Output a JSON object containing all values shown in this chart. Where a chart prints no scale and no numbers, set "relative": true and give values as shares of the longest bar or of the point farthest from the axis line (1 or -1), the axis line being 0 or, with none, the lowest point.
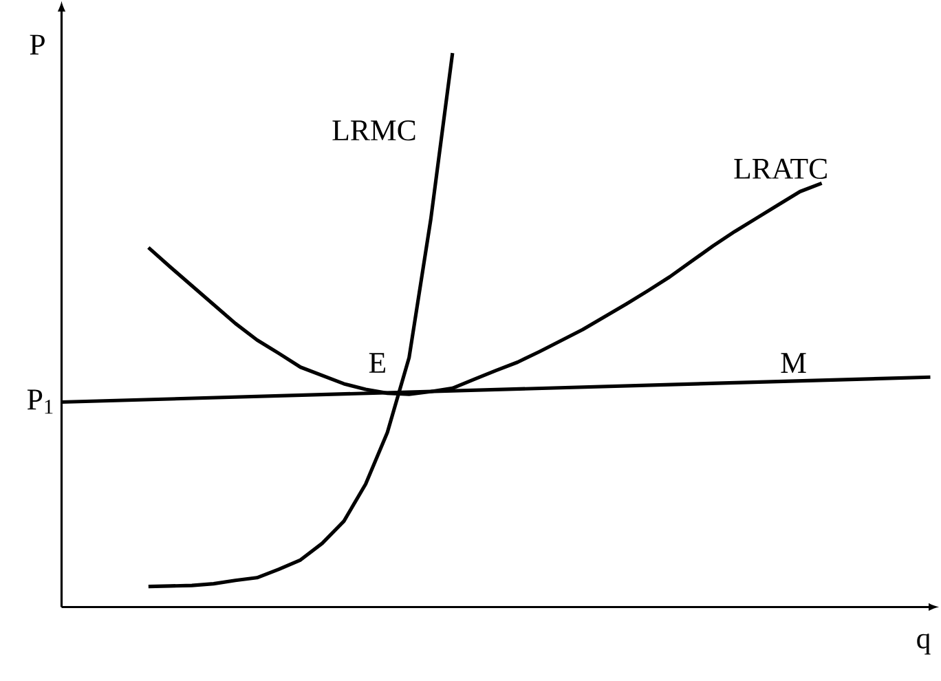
{
  "chart_data": {
    "type": "line",
    "relative": true,
    "xlabel": "q",
    "ylabel": "P",
    "line_style": "solid",
    "categories": [
      null,
      null,
      null,
      null,
      null,
      null,
      null,
      null,
      null,
      null,
      null,
      null,
      null,
      null,
      null,
      null,
      null,
      null,
      null,
      null,
      null,
      null,
      null,
      null,
      null,
      null,
      null,
      null,
      null,
      null,
      null,
      null,
      null,
      null,
      null,
      null,
      null,
      null,
      null,
      null,
      null
    ],
    "series": [
      {
        "name": "LRMC",
        "color": "#000000",
        "values": [
          null,
          null,
          null,
          null,
          0.037,
          0.038,
          0.039,
          0.042,
          0.048,
          0.053,
          0.068,
          0.085,
          0.115,
          0.155,
          0.222,
          0.315,
          0.45,
          0.7,
          1.0,
          null,
          null,
          null,
          null,
          null,
          null,
          null,
          null,
          null,
          null,
          null,
          null,
          null,
          null,
          null,
          null,
          null,
          null,
          null,
          null,
          null,
          null
        ]
      },
      {
        "name": "LRATC",
        "color": "#000000",
        "values": [
          null,
          null,
          null,
          null,
          0.649,
          0.614,
          0.58,
          0.546,
          0.512,
          0.482,
          0.458,
          0.433,
          0.418,
          0.403,
          0.393,
          0.386,
          0.384,
          0.389,
          0.395,
          0.411,
          0.427,
          0.442,
          0.461,
          0.481,
          0.501,
          0.524,
          0.547,
          0.571,
          0.596,
          0.624,
          0.652,
          0.678,
          0.702,
          0.726,
          0.75,
          0.765,
          null,
          null,
          null,
          null,
          null
        ]
      },
      {
        "name": "M",
        "color": "#000000",
        "values": [
          0.37,
          null,
          null,
          null,
          null,
          null,
          null,
          null,
          null,
          null,
          null,
          null,
          null,
          null,
          null,
          null,
          null,
          null,
          null,
          null,
          null,
          null,
          null,
          null,
          null,
          null,
          null,
          null,
          null,
          null,
          null,
          null,
          null,
          null,
          null,
          null,
          null,
          null,
          null,
          null,
          0.415
        ]
      }
    ],
    "annotations": [
      "E",
      "P$_{1}$"
    ]
  }
}
